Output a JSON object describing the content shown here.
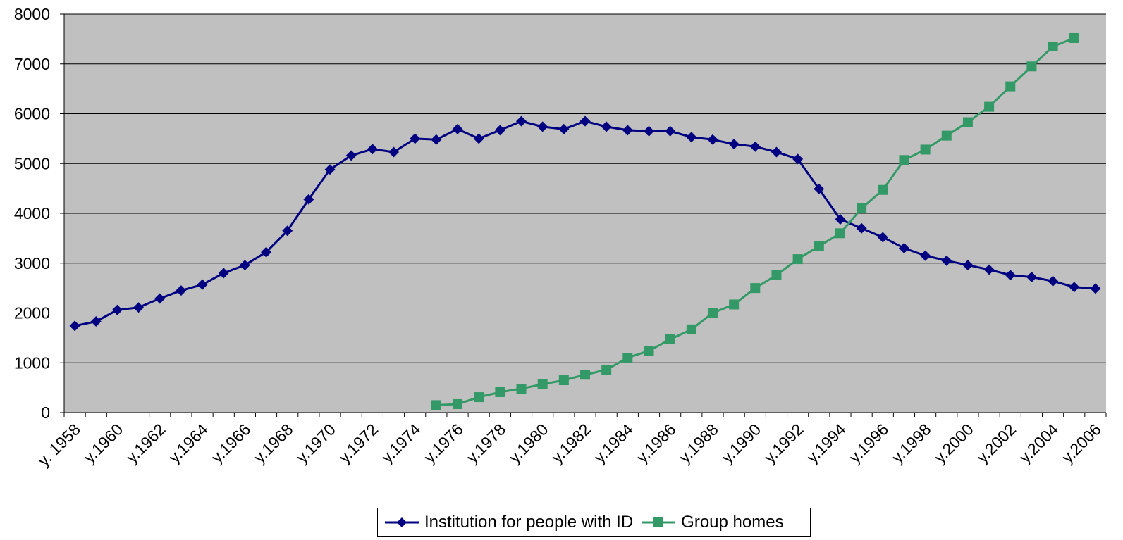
{
  "chart_data": {
    "type": "line",
    "title": "",
    "xlabel": "",
    "ylabel": "",
    "ylim": [
      0,
      8000
    ],
    "yticks": [
      0,
      1000,
      2000,
      3000,
      4000,
      5000,
      6000,
      7000,
      8000
    ],
    "grid": "horizontal",
    "legend_position": "bottom",
    "plot_background": "#c0c0c0",
    "categories": [
      "y. 1958",
      "y.1959",
      "y.1960",
      "y.1961",
      "y.1962",
      "y.1963",
      "y.1964",
      "y.1965",
      "y.1966",
      "y.1967",
      "y.1968",
      "y.1969",
      "y.1970",
      "y.1971",
      "y.1972",
      "y.1973",
      "y.1974",
      "y.1975",
      "y.1976",
      "y.1977",
      "y.1978",
      "y.1979",
      "y.1980",
      "y.1981",
      "y.1982",
      "y.1983",
      "y.1984",
      "y.1985",
      "y.1986",
      "y.1987",
      "y.1988",
      "y.1989",
      "y.1990",
      "y.1991",
      "y.1992",
      "y.1993",
      "y.1994",
      "y.1995",
      "y.1996",
      "y.1997",
      "y.1998",
      "y.1999",
      "y.2000",
      "y.2001",
      "y.2002",
      "y.2003",
      "y.2004",
      "y.2005",
      "y.2006"
    ],
    "x_tick_labels": [
      "y. 1958",
      "y.1960",
      "y.1962",
      "y.1964",
      "y.1966",
      "y.1968",
      "y.1970",
      "y.1972",
      "y.1974",
      "y.1976",
      "y.1978",
      "y.1980",
      "y.1982",
      "y.1984",
      "y.1986",
      "y.1988",
      "y.1990",
      "y.1992",
      "y.1994",
      "y.1996",
      "y.1998",
      "y.2000",
      "y.2002",
      "y.2004",
      "y.2006"
    ],
    "series": [
      {
        "name": "Institution for people with ID",
        "color": "#000080",
        "marker": "diamond",
        "values": [
          1740,
          1830,
          2060,
          2110,
          2290,
          2450,
          2570,
          2800,
          2960,
          3220,
          3650,
          4280,
          4880,
          5160,
          5290,
          5230,
          5500,
          5480,
          5690,
          5500,
          5670,
          5850,
          5740,
          5690,
          5850,
          5740,
          5670,
          5650,
          5650,
          5530,
          5480,
          5390,
          5340,
          5230,
          5090,
          4490,
          3880,
          3700,
          3520,
          3300,
          3150,
          3050,
          2960,
          2870,
          2760,
          2720,
          2640,
          2520,
          2490
        ]
      },
      {
        "name": "Group homes",
        "color": "#339966",
        "marker": "square",
        "values": [
          null,
          null,
          null,
          null,
          null,
          null,
          null,
          null,
          null,
          null,
          null,
          null,
          null,
          null,
          null,
          null,
          null,
          150,
          170,
          310,
          410,
          480,
          570,
          650,
          760,
          860,
          1100,
          1240,
          1470,
          1670,
          2000,
          2170,
          2500,
          2760,
          3080,
          3340,
          3600,
          4100,
          4470,
          5070,
          5280,
          5560,
          5830,
          6140,
          6550,
          6950,
          7350,
          7520,
          null
        ]
      }
    ]
  }
}
